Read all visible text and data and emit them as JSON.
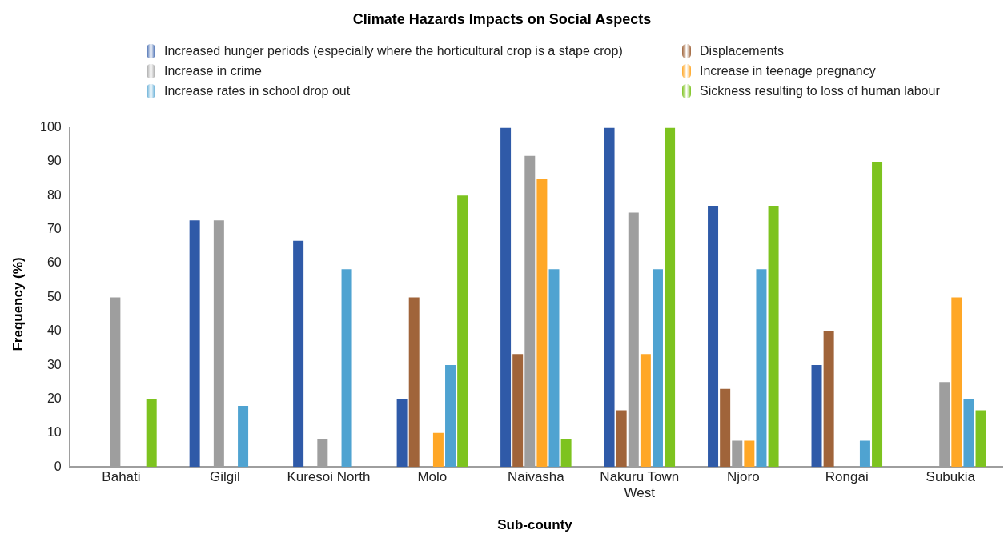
{
  "chart_data": {
    "type": "bar",
    "title": "Climate Hazards Impacts on Social Aspects",
    "xlabel": "Sub-county",
    "ylabel": "Frequency (%)",
    "categories": [
      "Bahati",
      "Gilgil",
      "Kuresoi North",
      "Molo",
      "Naivasha",
      "Nakuru Town West",
      "Njoro",
      "Rongai",
      "Subukia"
    ],
    "series": [
      {
        "name": "Increased hunger periods (especially where the horticultural crop is a stape crop)",
        "color": "#2f5aa8",
        "values": [
          null,
          72.7,
          66.7,
          20,
          100,
          100,
          77,
          30,
          null
        ]
      },
      {
        "name": "Displacements",
        "color": "#a0643a",
        "values": [
          null,
          null,
          null,
          50,
          33.3,
          16.7,
          23,
          40,
          null
        ]
      },
      {
        "name": "Increase in crime",
        "color": "#9e9e9e",
        "values": [
          50,
          72.7,
          8.3,
          null,
          91.7,
          75,
          7.7,
          null,
          25
        ]
      },
      {
        "name": "Increase in teenage pregnancy",
        "color": "#ffa726",
        "values": [
          null,
          null,
          null,
          10,
          85,
          33.3,
          7.7,
          null,
          50
        ]
      },
      {
        "name": "Increase rates in school drop out",
        "color": "#4fa3d1",
        "values": [
          null,
          18,
          58.3,
          30,
          58.3,
          58.3,
          58.3,
          7.7,
          20
        ]
      },
      {
        "name": "Sickness resulting to loss of human labour",
        "color": "#7dc31f",
        "values": [
          20,
          null,
          null,
          80,
          8.3,
          100,
          77,
          90,
          16.7
        ]
      }
    ],
    "ylim": [
      0,
      100
    ],
    "yticks": [
      0,
      10,
      20,
      30,
      40,
      50,
      60,
      70,
      80,
      90,
      100
    ],
    "grid": false,
    "legend": "top"
  }
}
